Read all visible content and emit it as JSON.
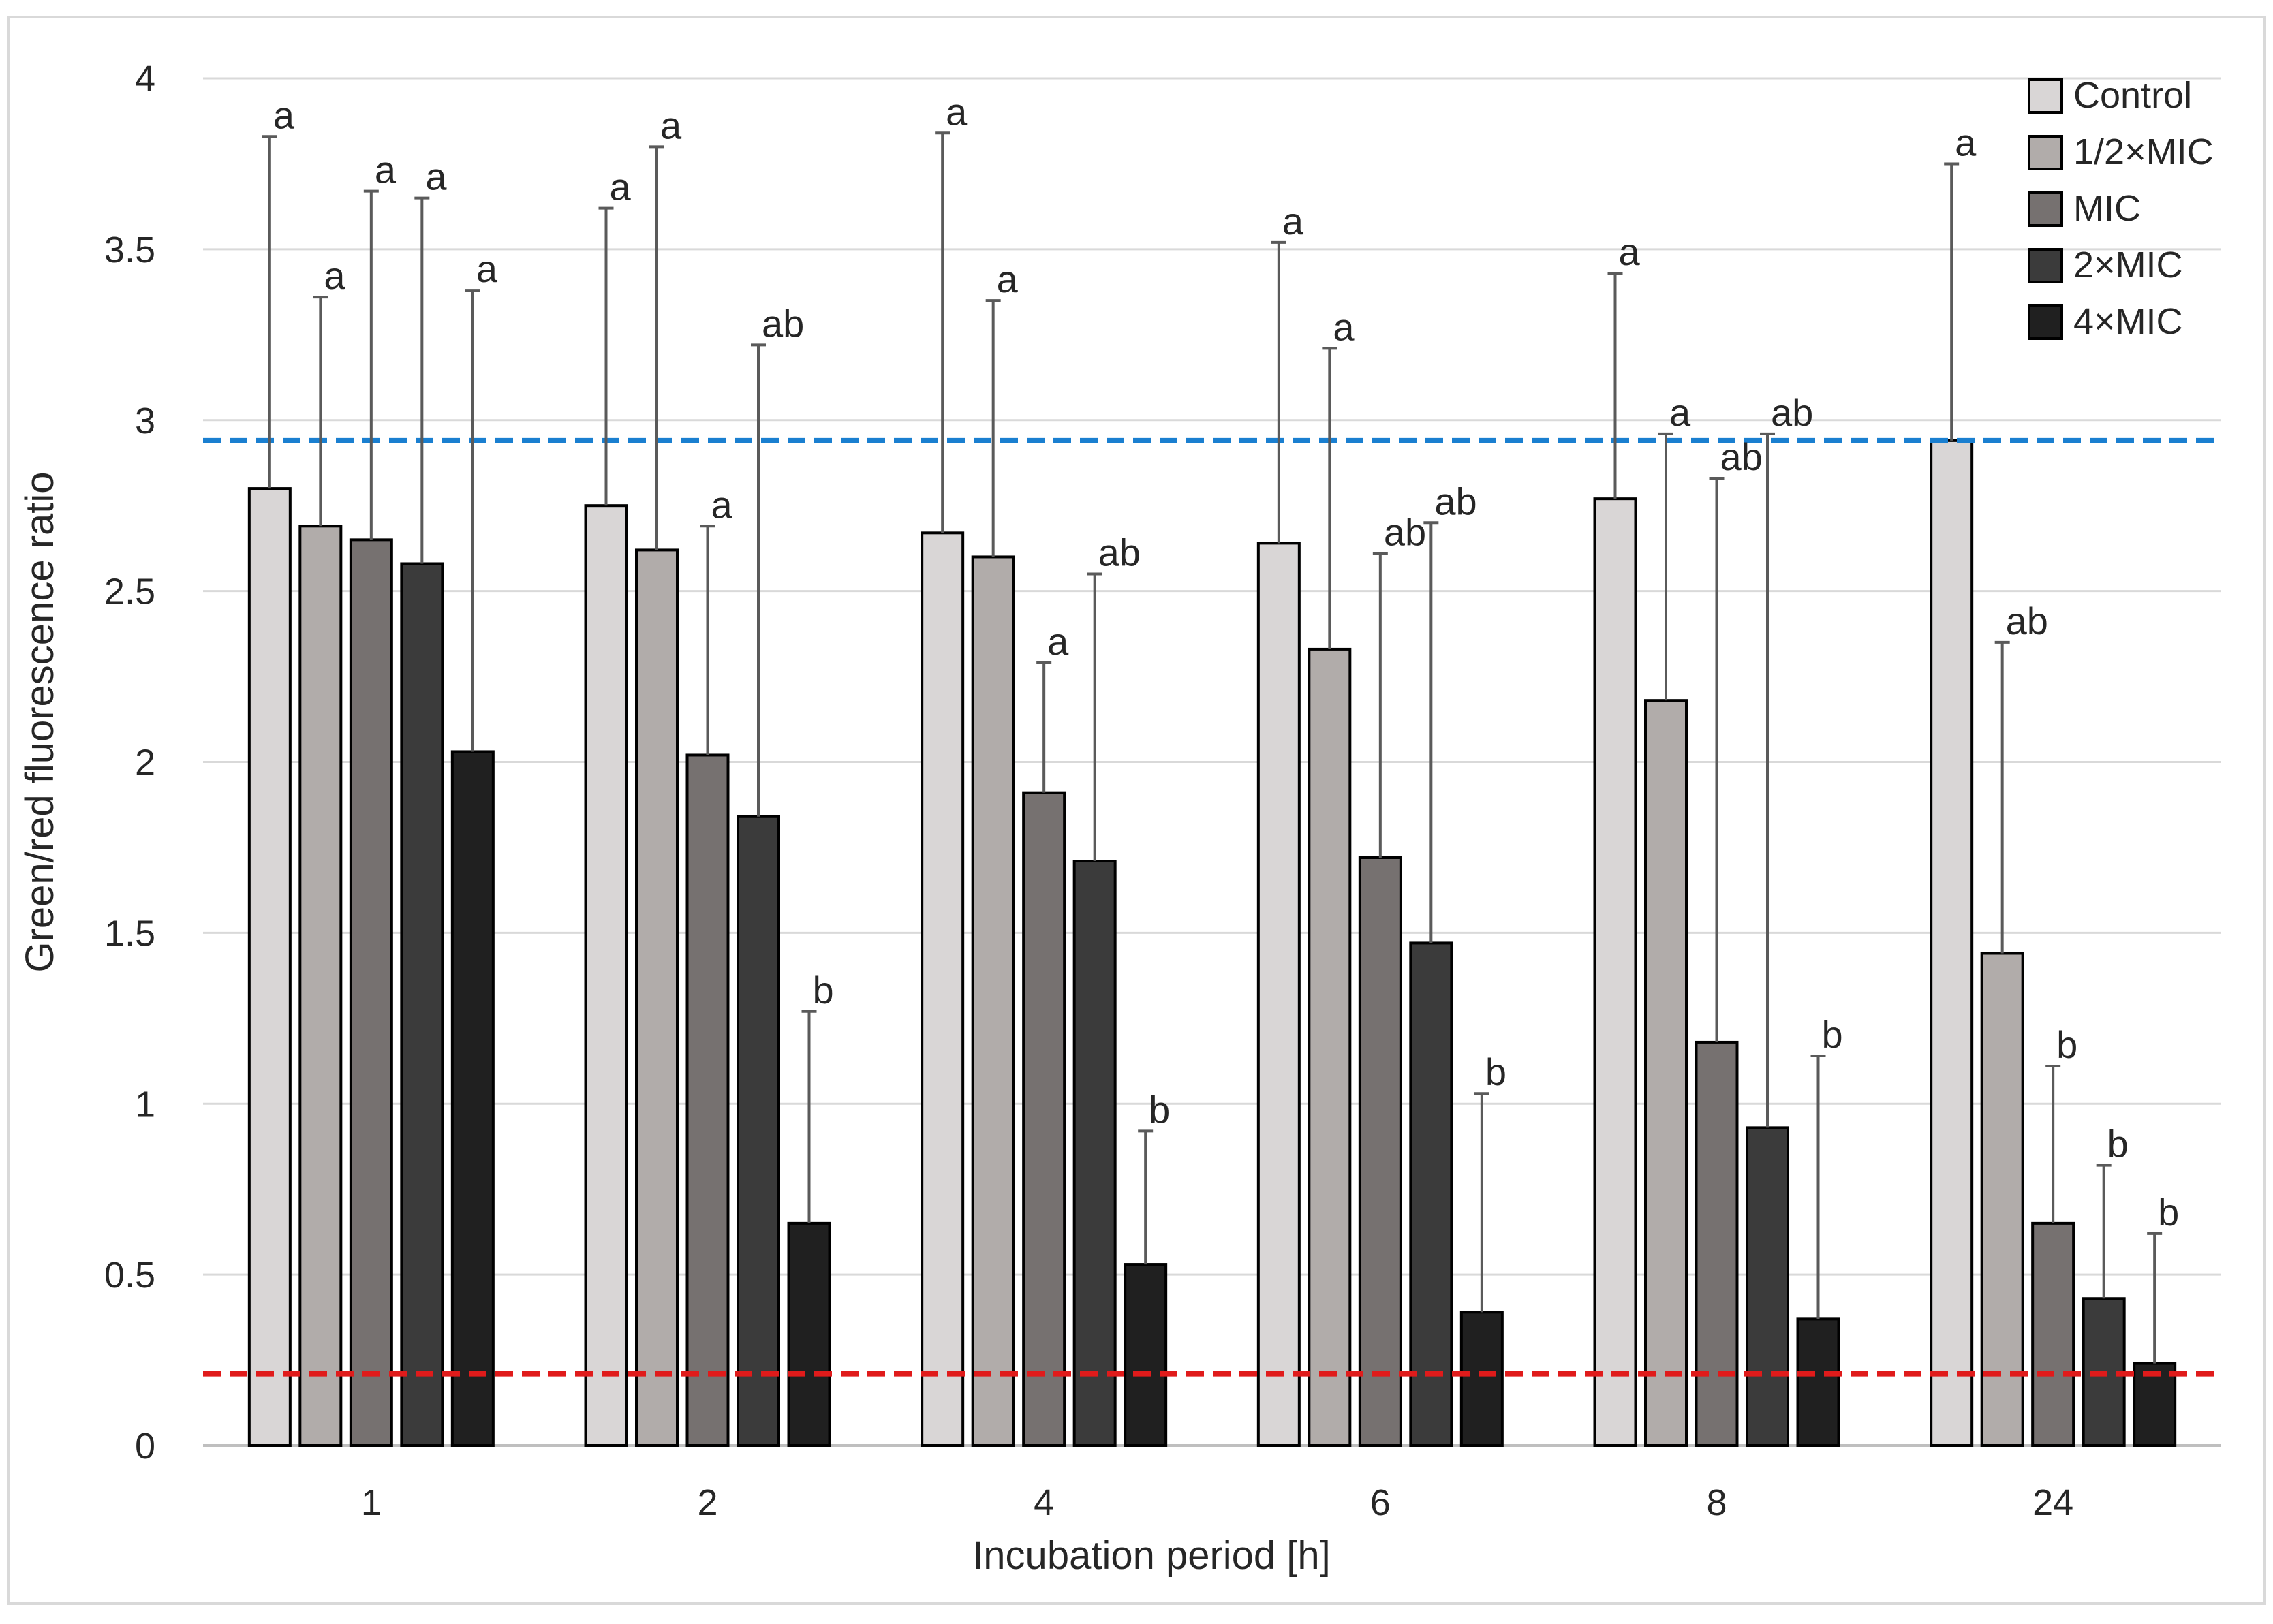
{
  "chart_data": {
    "type": "bar",
    "title": "",
    "xlabel": "Incubation period [h]",
    "ylabel": "Green/red  fluorescence ratio",
    "categories": [
      "1",
      "2",
      "4",
      "6",
      "8",
      "24"
    ],
    "ylim": [
      0,
      4
    ],
    "yticks": [
      "0",
      "0.5",
      "1",
      "1.5",
      "2",
      "2.5",
      "3",
      "3.5",
      "4"
    ],
    "grid": "horizontal",
    "legend_position": "top-right",
    "series": [
      {
        "name": "Control",
        "color": "#d9d6d6",
        "values": [
          2.8,
          2.75,
          2.67,
          2.64,
          2.77,
          2.94
        ],
        "error_upper": [
          3.83,
          3.62,
          3.84,
          3.52,
          3.43,
          3.75
        ],
        "letters": [
          "a",
          "a",
          "a",
          "a",
          "a",
          "a"
        ]
      },
      {
        "name": "1/2×MIC",
        "color": "#b1acaa",
        "values": [
          2.69,
          2.62,
          2.6,
          2.33,
          2.18,
          1.44
        ],
        "error_upper": [
          3.36,
          3.8,
          3.35,
          3.21,
          2.96,
          2.35
        ],
        "letters": [
          "a",
          "a",
          "a",
          "a",
          "a",
          "ab"
        ]
      },
      {
        "name": "MIC",
        "color": "#767170",
        "values": [
          2.65,
          2.02,
          1.91,
          1.72,
          1.18,
          0.65
        ],
        "error_upper": [
          3.67,
          2.69,
          2.29,
          2.61,
          2.83,
          1.11
        ],
        "letters": [
          "a",
          "a",
          "a",
          "ab",
          "ab",
          "b"
        ]
      },
      {
        "name": "2×MIC",
        "color": "#3b3b3b",
        "values": [
          2.58,
          1.84,
          1.71,
          1.47,
          0.93,
          0.43
        ],
        "error_upper": [
          3.65,
          3.22,
          2.55,
          2.7,
          2.96,
          0.82
        ],
        "letters": [
          "a",
          "ab",
          "ab",
          "ab",
          "ab",
          "b"
        ]
      },
      {
        "name": "4×MIC",
        "color": "#202020",
        "values": [
          2.03,
          0.65,
          0.53,
          0.39,
          0.37,
          0.24
        ],
        "error_upper": [
          3.38,
          1.27,
          0.92,
          1.03,
          1.14,
          0.62
        ],
        "letters": [
          "a",
          "b",
          "b",
          "b",
          "b",
          "b"
        ]
      }
    ],
    "reference_lines": [
      {
        "value": 2.94,
        "color": "#1a7fd0",
        "style": "dashed"
      },
      {
        "value": 0.21,
        "color": "#e01b1b",
        "style": "dashed"
      }
    ]
  }
}
